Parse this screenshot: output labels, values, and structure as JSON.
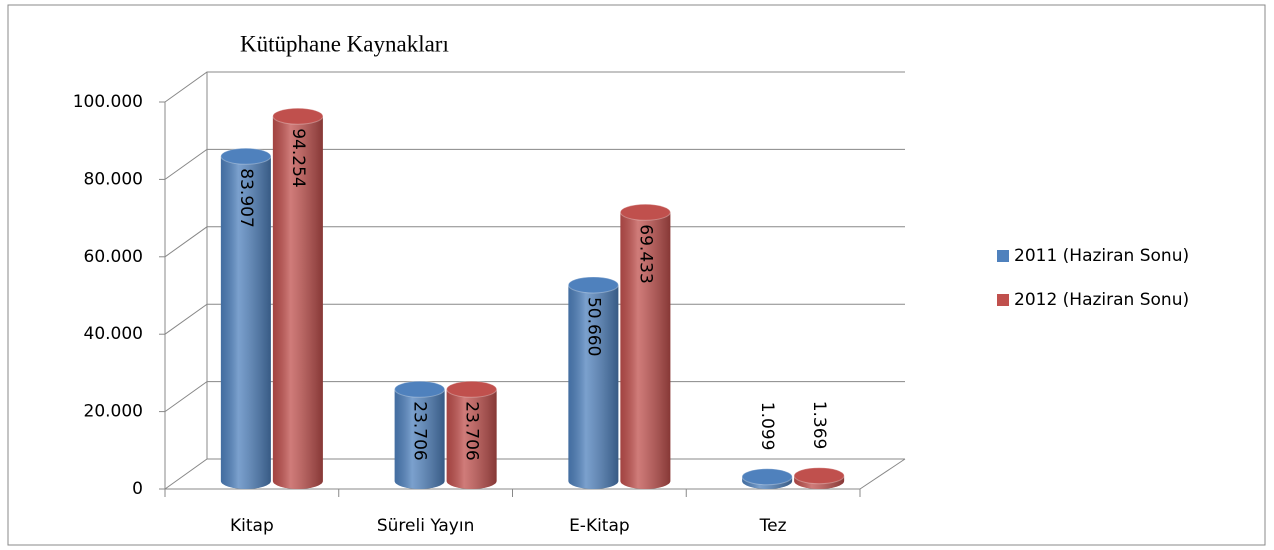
{
  "chart_data": {
    "type": "bar3d",
    "title": "Kütüphane Kaynakları",
    "categories": [
      "Kitap",
      "Süreli Yayın",
      "E-Kitap",
      "Tez"
    ],
    "series": [
      {
        "name": "2011 (Haziran Sonu)",
        "color": "#4f81bd",
        "values": [
          83907,
          23706,
          50660,
          1099
        ],
        "value_labels": [
          "83.907",
          "23.706",
          "50.660",
          "1.099"
        ]
      },
      {
        "name": "2012 (Haziran Sonu)",
        "color": "#c0504d",
        "values": [
          94254,
          23706,
          69433,
          1369
        ],
        "value_labels": [
          "94.254",
          "23.706",
          "69.433",
          "1.369"
        ]
      }
    ],
    "ylim": [
      0,
      100000
    ],
    "yticks": [
      0,
      {
        "value": 20000,
        "label": "20.000"
      },
      {
        "value": 40000,
        "label": "40.000"
      },
      {
        "value": 60000,
        "label": "60.000"
      },
      {
        "value": 80000,
        "label": "80.000"
      },
      {
        "value": 100000,
        "label": "100.000"
      }
    ],
    "grid": true,
    "legend": "right"
  }
}
